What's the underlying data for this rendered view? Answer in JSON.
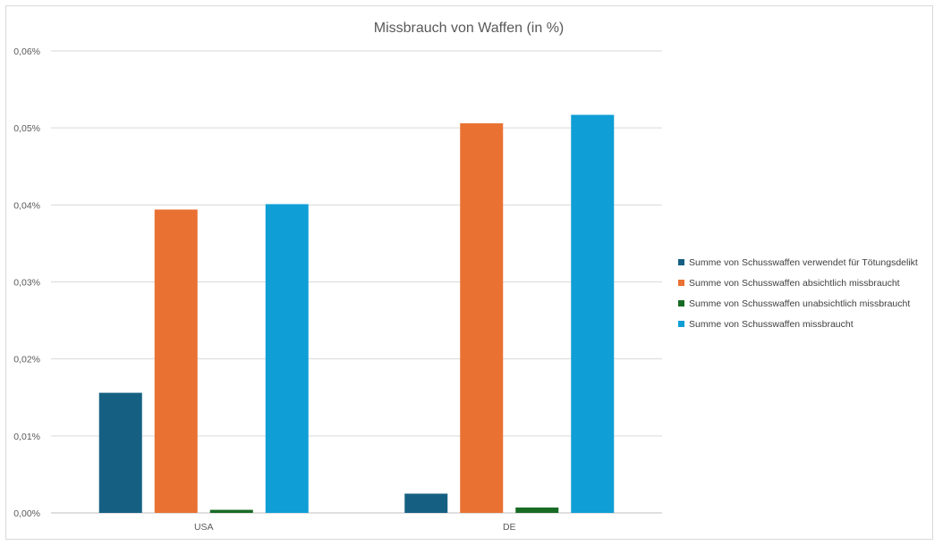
{
  "chart_data": {
    "type": "bar",
    "title": "Missbrauch von Waffen (in %)",
    "xlabel": "",
    "ylabel": "",
    "categories": [
      "USA",
      "DE"
    ],
    "ylim": [
      0,
      0.06
    ],
    "yticks": [
      0,
      0.01,
      0.02,
      0.03,
      0.04,
      0.05,
      0.06
    ],
    "ytick_labels": [
      "0,00%",
      "0,01%",
      "0,02%",
      "0,03%",
      "0,04%",
      "0,05%",
      "0,06%"
    ],
    "grid": true,
    "legend_position": "right",
    "series": [
      {
        "name": "Summe von Schusswaffen verwendet für Tötungsdelikt",
        "color": "#156082",
        "values": [
          0.0156,
          0.0025
        ]
      },
      {
        "name": "Summe von Schusswaffen absichtlich missbraucht",
        "color": "#E97132",
        "values": [
          0.0394,
          0.0506
        ]
      },
      {
        "name": "Summe von Schusswaffen unabsichtlich missbraucht",
        "color": "#196B24",
        "values": [
          0.0004,
          0.0007
        ]
      },
      {
        "name": "Summe von Schusswaffen missbraucht",
        "color": "#0F9ED5",
        "values": [
          0.0401,
          0.0517
        ]
      }
    ]
  }
}
